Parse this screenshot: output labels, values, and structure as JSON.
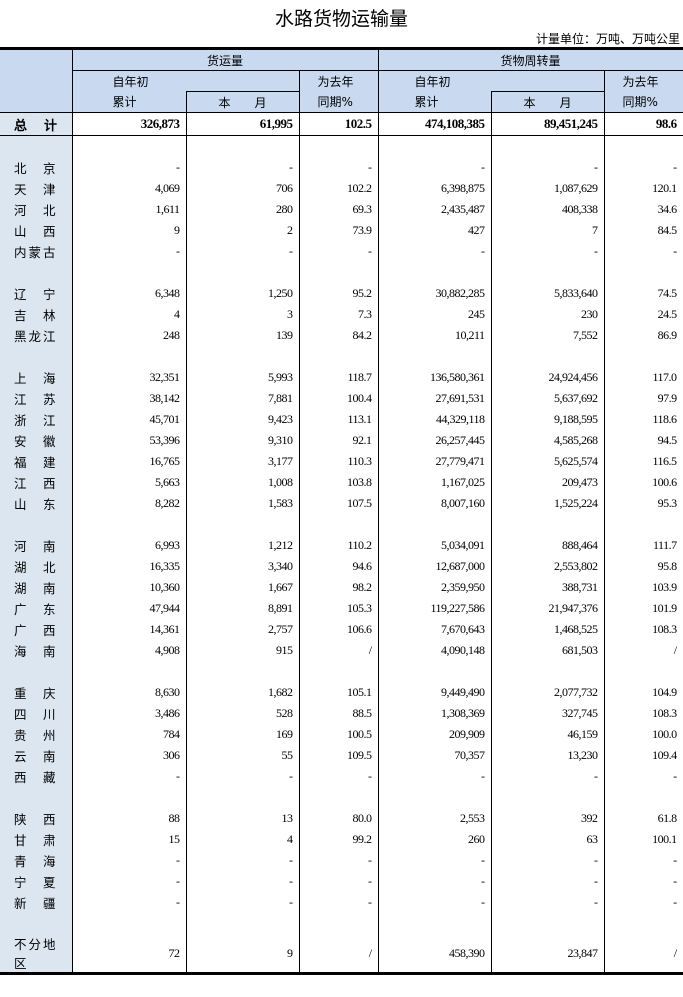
{
  "title": "水路货物运输量",
  "unit": "计量单位：万吨、万吨公里",
  "header": {
    "group1": "货运量",
    "group2": "货物周转量",
    "ytd_top": "自年初",
    "ytd_bottom": "累计",
    "month": "本　　月",
    "yoy_top": "为去年",
    "yoy_bottom": "同期%"
  },
  "groups": [
    [
      [
        "总　计",
        "326,873",
        "61,995",
        "102.5",
        "474,108,385",
        "89,451,245",
        "98.6"
      ]
    ],
    [
      [
        "北　京",
        "-",
        "-",
        "-",
        "-",
        "-",
        "-"
      ],
      [
        "天　津",
        "4,069",
        "706",
        "102.2",
        "6,398,875",
        "1,087,629",
        "120.1"
      ],
      [
        "河　北",
        "1,611",
        "280",
        "69.3",
        "2,435,487",
        "408,338",
        "34.6"
      ],
      [
        "山　西",
        "9",
        "2",
        "73.9",
        "427",
        "7",
        "84.5"
      ],
      [
        "内蒙古",
        "-",
        "-",
        "-",
        "-",
        "-",
        "-"
      ]
    ],
    [
      [
        "辽　宁",
        "6,348",
        "1,250",
        "95.2",
        "30,882,285",
        "5,833,640",
        "74.5"
      ],
      [
        "吉　林",
        "4",
        "3",
        "7.3",
        "245",
        "230",
        "24.5"
      ],
      [
        "黑龙江",
        "248",
        "139",
        "84.2",
        "10,211",
        "7,552",
        "86.9"
      ]
    ],
    [
      [
        "上　海",
        "32,351",
        "5,993",
        "118.7",
        "136,580,361",
        "24,924,456",
        "117.0"
      ],
      [
        "江　苏",
        "38,142",
        "7,881",
        "100.4",
        "27,691,531",
        "5,637,692",
        "97.9"
      ],
      [
        "浙　江",
        "45,701",
        "9,423",
        "113.1",
        "44,329,118",
        "9,188,595",
        "118.6"
      ],
      [
        "安　徽",
        "53,396",
        "9,310",
        "92.1",
        "26,257,445",
        "4,585,268",
        "94.5"
      ],
      [
        "福　建",
        "16,765",
        "3,177",
        "110.3",
        "27,779,471",
        "5,625,574",
        "116.5"
      ],
      [
        "江　西",
        "5,663",
        "1,008",
        "103.8",
        "1,167,025",
        "209,473",
        "100.6"
      ],
      [
        "山　东",
        "8,282",
        "1,583",
        "107.5",
        "8,007,160",
        "1,525,224",
        "95.3"
      ]
    ],
    [
      [
        "河　南",
        "6,993",
        "1,212",
        "110.2",
        "5,034,091",
        "888,464",
        "111.7"
      ],
      [
        "湖　北",
        "16,335",
        "3,340",
        "94.6",
        "12,687,000",
        "2,553,802",
        "95.8"
      ],
      [
        "湖　南",
        "10,360",
        "1,667",
        "98.2",
        "2,359,950",
        "388,731",
        "103.9"
      ],
      [
        "广　东",
        "47,944",
        "8,891",
        "105.3",
        "119,227,586",
        "21,947,376",
        "101.9"
      ],
      [
        "广　西",
        "14,361",
        "2,757",
        "106.6",
        "7,670,643",
        "1,468,525",
        "108.3"
      ],
      [
        "海　南",
        "4,908",
        "915",
        "/",
        "4,090,148",
        "681,503",
        "/"
      ]
    ],
    [
      [
        "重　庆",
        "8,630",
        "1,682",
        "105.1",
        "9,449,490",
        "2,077,732",
        "104.9"
      ],
      [
        "四　川",
        "3,486",
        "528",
        "88.5",
        "1,308,369",
        "327,745",
        "108.3"
      ],
      [
        "贵　州",
        "784",
        "169",
        "100.5",
        "209,909",
        "46,159",
        "100.0"
      ],
      [
        "云　南",
        "306",
        "55",
        "109.5",
        "70,357",
        "13,230",
        "109.4"
      ],
      [
        "西　藏",
        "-",
        "-",
        "-",
        "-",
        "-",
        "-"
      ]
    ],
    [
      [
        "陕　西",
        "88",
        "13",
        "80.0",
        "2,553",
        "392",
        "61.8"
      ],
      [
        "甘　肃",
        "15",
        "4",
        "99.2",
        "260",
        "63",
        "100.1"
      ],
      [
        "青　海",
        "-",
        "-",
        "-",
        "-",
        "-",
        "-"
      ],
      [
        "宁　夏",
        "-",
        "-",
        "-",
        "-",
        "-",
        "-"
      ],
      [
        "新　疆",
        "-",
        "-",
        "-",
        "-",
        "-",
        "-"
      ]
    ],
    [
      [
        "不分地区",
        "72",
        "9",
        "/",
        "458,390",
        "23,847",
        "/"
      ]
    ]
  ]
}
